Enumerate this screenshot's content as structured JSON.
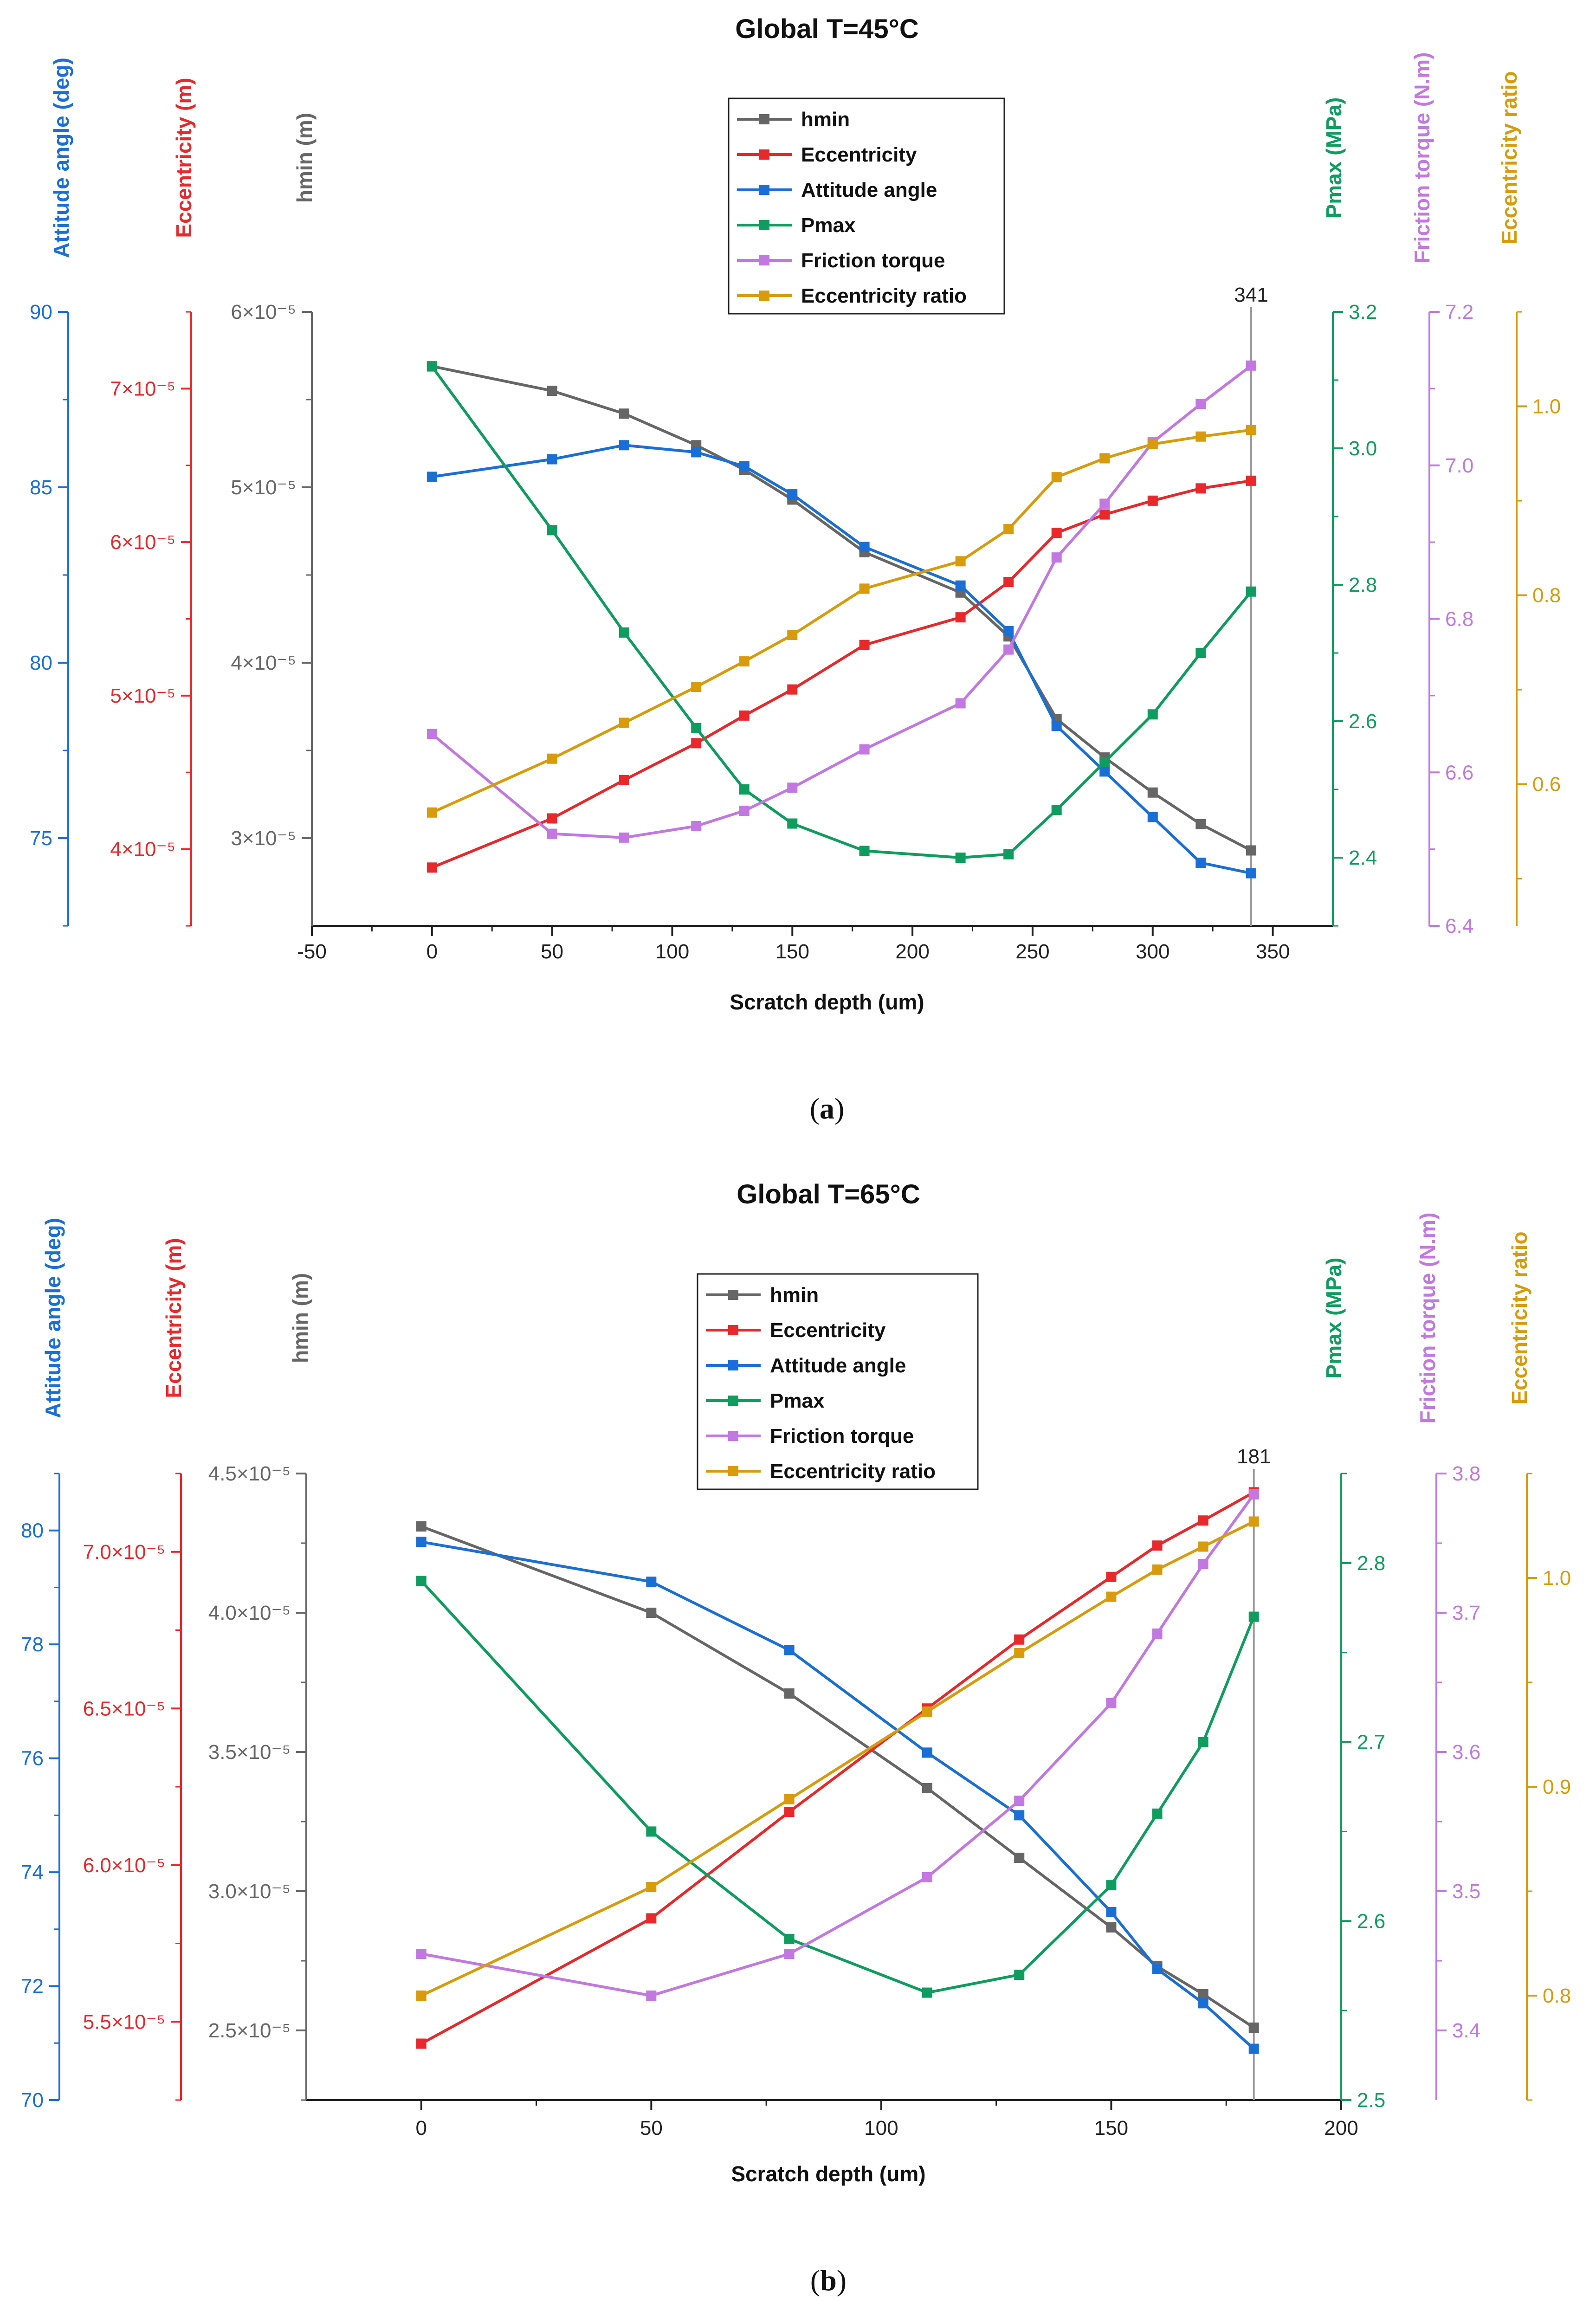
{
  "chart_data": [
    {
      "type": "line",
      "title": "Global  T=45°C",
      "xlabel": "Scratch depth (um)",
      "xlim": [
        -50,
        375
      ],
      "xticks": [
        -50,
        0,
        50,
        100,
        150,
        200,
        250,
        300,
        350
      ],
      "marker_label": "341",
      "marker_x": 341,
      "caption_letter": "a",
      "axes": [
        {
          "id": "hmin",
          "label": "hmin (m)",
          "color": "#666666",
          "lim": [
            2.5e-05,
            6e-05
          ],
          "ticks": [
            3e-05,
            4e-05,
            5e-05,
            6e-05
          ],
          "tick_labels": [
            "3×10⁻⁵",
            "4×10⁻⁵",
            "5×10⁻⁵",
            "6×10⁻⁵"
          ]
        },
        {
          "id": "ecc",
          "label": "Eccentricity (m)",
          "color": "#e8282b",
          "lim": [
            3.5e-05,
            7.5e-05
          ],
          "ticks": [
            4e-05,
            5e-05,
            6e-05,
            7e-05
          ],
          "tick_labels": [
            "4×10⁻⁵",
            "5×10⁻⁵",
            "6×10⁻⁵",
            "7×10⁻⁵"
          ]
        },
        {
          "id": "att",
          "label": "Attitude angle (deg)",
          "color": "#1a6fd6",
          "lim": [
            72.5,
            90
          ],
          "ticks": [
            75,
            80,
            85,
            90
          ],
          "tick_labels": [
            "75",
            "80",
            "85",
            "90"
          ]
        },
        {
          "id": "pmax",
          "label": "Pmax (MPa)",
          "color": "#0f9d5f",
          "lim": [
            2.3,
            3.2
          ],
          "ticks": [
            2.4,
            2.6,
            2.8,
            3.0,
            3.2
          ],
          "tick_labels": [
            "2.4",
            "2.6",
            "2.8",
            "3.0",
            "3.2"
          ]
        },
        {
          "id": "torque",
          "label": "Friction torque (N.m)",
          "color": "#c278e0",
          "lim": [
            6.4,
            7.2
          ],
          "ticks": [
            6.4,
            6.6,
            6.8,
            7.0,
            7.2
          ],
          "tick_labels": [
            "6.4",
            "6.6",
            "6.8",
            "7.0",
            "7.2"
          ]
        },
        {
          "id": "ratio",
          "label": "Eccentricity ratio",
          "color": "#d89b0b",
          "lim": [
            0.45,
            1.1
          ],
          "ticks": [
            0.6,
            0.8,
            1.0
          ],
          "tick_labels": [
            "0.6",
            "0.8",
            "1.0"
          ]
        }
      ],
      "series": [
        {
          "name": "hmin",
          "axis": "hmin",
          "x": [
            0,
            50,
            80,
            110,
            130,
            150,
            180,
            220,
            240,
            260,
            280,
            300,
            320,
            341
          ],
          "values": [
            5.69e-05,
            5.55e-05,
            5.42e-05,
            5.24e-05,
            5.1e-05,
            4.93e-05,
            4.63e-05,
            4.4e-05,
            4.15e-05,
            3.68e-05,
            3.46e-05,
            3.26e-05,
            3.08e-05,
            2.93e-05
          ]
        },
        {
          "name": "Eccentricity",
          "axis": "ecc",
          "x": [
            0,
            50,
            80,
            110,
            130,
            150,
            180,
            220,
            240,
            260,
            280,
            300,
            320,
            341
          ],
          "values": [
            3.88e-05,
            4.2e-05,
            4.45e-05,
            4.69e-05,
            4.87e-05,
            5.04e-05,
            5.33e-05,
            5.51e-05,
            5.74e-05,
            6.06e-05,
            6.18e-05,
            6.27e-05,
            6.35e-05,
            6.4e-05
          ]
        },
        {
          "name": "Attitude angle",
          "axis": "att",
          "x": [
            0,
            50,
            80,
            110,
            130,
            150,
            180,
            220,
            240,
            260,
            280,
            300,
            320,
            341
          ],
          "values": [
            85.3,
            85.8,
            86.2,
            86.0,
            85.6,
            84.8,
            83.3,
            82.2,
            80.9,
            78.2,
            76.9,
            75.6,
            74.3,
            74.0
          ]
        },
        {
          "name": "Pmax",
          "axis": "pmax",
          "x": [
            0,
            50,
            80,
            110,
            130,
            150,
            180,
            220,
            240,
            260,
            280,
            300,
            320,
            341
          ],
          "values": [
            3.12,
            2.88,
            2.73,
            2.59,
            2.5,
            2.45,
            2.41,
            2.4,
            2.405,
            2.47,
            2.54,
            2.61,
            2.7,
            2.79
          ]
        },
        {
          "name": "Friction torque",
          "axis": "torque",
          "x": [
            0,
            50,
            80,
            110,
            130,
            150,
            180,
            220,
            240,
            260,
            280,
            300,
            320,
            341
          ],
          "values": [
            6.65,
            6.52,
            6.515,
            6.53,
            6.55,
            6.58,
            6.63,
            6.69,
            6.76,
            6.88,
            6.95,
            7.03,
            7.08,
            7.13
          ]
        },
        {
          "name": "Eccentricity ratio",
          "axis": "ratio",
          "x": [
            0,
            50,
            80,
            110,
            130,
            150,
            180,
            220,
            240,
            260,
            280,
            300,
            320,
            341
          ],
          "values": [
            0.57,
            0.627,
            0.665,
            0.703,
            0.73,
            0.758,
            0.807,
            0.836,
            0.87,
            0.925,
            0.945,
            0.96,
            0.968,
            0.975
          ]
        }
      ]
    },
    {
      "type": "line",
      "title": "Global  T=65°C",
      "xlabel": "Scratch depth (um)",
      "xlim": [
        -25,
        200
      ],
      "xticks": [
        0,
        50,
        100,
        150,
        200
      ],
      "marker_label": "181",
      "marker_x": 181,
      "caption_letter": "b",
      "axes": [
        {
          "id": "hmin",
          "label": "hmin (m)",
          "color": "#666666",
          "lim": [
            2.25e-05,
            4.5e-05
          ],
          "ticks": [
            2.5e-05,
            3e-05,
            3.5e-05,
            4e-05,
            4.5e-05
          ],
          "tick_labels": [
            "2.5×10⁻⁵",
            "3.0×10⁻⁵",
            "3.5×10⁻⁵",
            "4.0×10⁻⁵",
            "4.5×10⁻⁵"
          ]
        },
        {
          "name_note": "",
          "id": "ecc",
          "label": "Eccentricity (m)",
          "color": "#e8282b",
          "lim": [
            5.25e-05,
            7.25e-05
          ],
          "ticks": [
            5.5e-05,
            6e-05,
            6.5e-05,
            7e-05
          ],
          "tick_labels": [
            "5.5×10⁻⁵",
            "6.0×10⁻⁵",
            "6.5×10⁻⁵",
            "7.0×10⁻⁵"
          ]
        },
        {
          "id": "att",
          "label": "Attitude angle (deg)",
          "color": "#1a6fd6",
          "lim": [
            70,
            81
          ],
          "ticks": [
            70,
            72,
            74,
            76,
            78,
            80
          ],
          "tick_labels": [
            "70",
            "72",
            "74",
            "76",
            "78",
            "80"
          ]
        },
        {
          "id": "pmax",
          "label": "Pmax (MPa)",
          "color": "#0f9d5f",
          "lim": [
            2.5,
            2.85
          ],
          "ticks": [
            2.5,
            2.6,
            2.7,
            2.8
          ],
          "tick_labels": [
            "2.5",
            "2.6",
            "2.7",
            "2.8"
          ]
        },
        {
          "id": "torque",
          "label": "Friction torque (N.m)",
          "color": "#c278e0",
          "lim": [
            3.35,
            3.8
          ],
          "ticks": [
            3.4,
            3.5,
            3.6,
            3.7,
            3.8
          ],
          "tick_labels": [
            "3.4",
            "3.5",
            "3.6",
            "3.7",
            "3.8"
          ]
        },
        {
          "id": "ratio",
          "label": "Eccentricity ratio",
          "color": "#d89b0b",
          "lim": [
            0.75,
            1.05
          ],
          "ticks": [
            0.8,
            0.9,
            1.0
          ],
          "tick_labels": [
            "0.8",
            "0.9",
            "1.0"
          ]
        }
      ],
      "series": [
        {
          "name": "hmin",
          "axis": "hmin",
          "x": [
            0,
            50,
            80,
            110,
            130,
            150,
            160,
            170,
            181
          ],
          "values": [
            4.31e-05,
            4e-05,
            3.71e-05,
            3.37e-05,
            3.12e-05,
            2.87e-05,
            2.73e-05,
            2.63e-05,
            2.51e-05
          ]
        },
        {
          "name": "Eccentricity",
          "axis": "ecc",
          "x": [
            0,
            50,
            80,
            110,
            130,
            150,
            160,
            170,
            181
          ],
          "values": [
            5.43e-05,
            5.83e-05,
            6.17e-05,
            6.5e-05,
            6.72e-05,
            6.92e-05,
            7.02e-05,
            7.1e-05,
            7.19e-05
          ]
        },
        {
          "name": "Attitude angle",
          "axis": "att",
          "x": [
            0,
            50,
            80,
            110,
            130,
            150,
            160,
            170,
            181
          ],
          "values": [
            79.8,
            79.1,
            77.9,
            76.1,
            75.0,
            73.3,
            72.3,
            71.7,
            70.9
          ]
        },
        {
          "name": "Pmax",
          "axis": "pmax",
          "x": [
            0,
            50,
            80,
            110,
            130,
            150,
            160,
            170,
            181
          ],
          "values": [
            2.79,
            2.65,
            2.59,
            2.56,
            2.57,
            2.62,
            2.66,
            2.7,
            2.77
          ]
        },
        {
          "name": "Friction torque",
          "axis": "torque",
          "x": [
            0,
            50,
            80,
            110,
            130,
            150,
            160,
            170,
            181
          ],
          "values": [
            3.455,
            3.425,
            3.455,
            3.51,
            3.565,
            3.635,
            3.685,
            3.735,
            3.785
          ]
        },
        {
          "name": "Eccentricity ratio",
          "axis": "ratio",
          "x": [
            0,
            50,
            80,
            110,
            130,
            150,
            160,
            170,
            181
          ],
          "values": [
            0.8,
            0.852,
            0.894,
            0.936,
            0.964,
            0.991,
            1.004,
            1.015,
            1.027
          ]
        }
      ]
    }
  ]
}
